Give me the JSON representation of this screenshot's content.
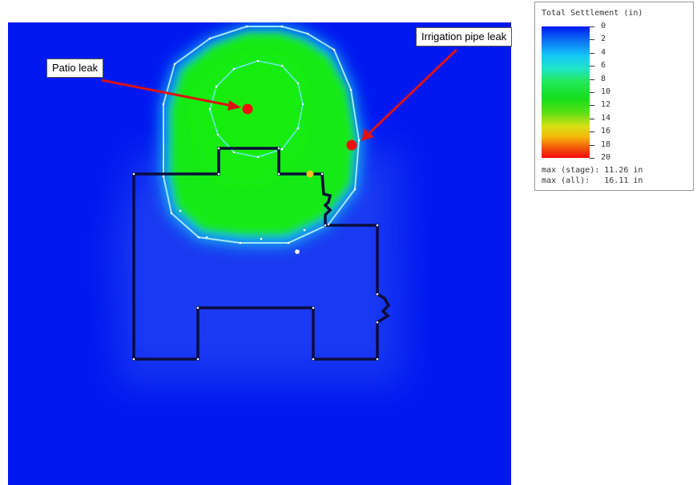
{
  "callouts": {
    "patio": "Patio leak",
    "irrigation": "Irrigation pipe leak"
  },
  "legend": {
    "title": "Total Settlement (in)",
    "ticks": [
      "0",
      "2",
      "4",
      "6",
      "8",
      "10",
      "12",
      "14",
      "16",
      "18",
      "20"
    ],
    "max_stage_label": "max (stage): 11.26 in",
    "max_all_label": "max (all):   16.11 in"
  },
  "colors": {
    "background_field": "#0018f0",
    "wet_zone": "#10ee12",
    "foundation_outline": "#0c0c3c",
    "leak_marker": "#ee1111",
    "arrow": "#dd1111",
    "highlight_point": "#f2c21a"
  }
}
